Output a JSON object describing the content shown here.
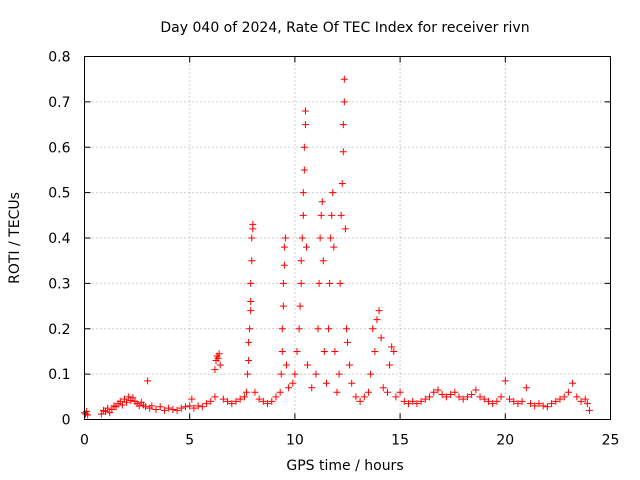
{
  "chart_data": {
    "type": "scatter",
    "title": "Day 040 of 2024, Rate Of TEC Index for receiver rivn",
    "xlabel": "GPS time / hours",
    "ylabel": "ROTI / TECUs",
    "xlim": [
      0,
      25
    ],
    "ylim": [
      0,
      0.8
    ],
    "x_ticks": [
      0,
      5,
      10,
      15,
      20,
      25
    ],
    "y_ticks": [
      0,
      0.1,
      0.2,
      0.3,
      0.4,
      0.5,
      0.6,
      0.7,
      0.8
    ],
    "x_tick_labels": [
      "0",
      "5",
      "10",
      "15",
      "20",
      "25"
    ],
    "y_tick_labels": [
      "0",
      "0.1",
      "0.2",
      "0.3",
      "0.4",
      "0.5",
      "0.6",
      "0.7",
      "0.8"
    ],
    "grid": true,
    "marker": "plus",
    "marker_color": "#ff0000",
    "points": [
      [
        0.0,
        0.015
      ],
      [
        0.05,
        0.012
      ],
      [
        0.1,
        0.018
      ],
      [
        0.15,
        0.01
      ],
      [
        0.8,
        0.012
      ],
      [
        0.9,
        0.02
      ],
      [
        1.0,
        0.018
      ],
      [
        1.1,
        0.025
      ],
      [
        1.2,
        0.015
      ],
      [
        1.3,
        0.022
      ],
      [
        1.4,
        0.03
      ],
      [
        1.5,
        0.028
      ],
      [
        1.6,
        0.035
      ],
      [
        1.7,
        0.04
      ],
      [
        1.8,
        0.032
      ],
      [
        1.9,
        0.045
      ],
      [
        2.0,
        0.038
      ],
      [
        2.1,
        0.05
      ],
      [
        2.2,
        0.042
      ],
      [
        2.3,
        0.048
      ],
      [
        2.4,
        0.04
      ],
      [
        2.5,
        0.035
      ],
      [
        2.6,
        0.03
      ],
      [
        2.7,
        0.038
      ],
      [
        2.8,
        0.032
      ],
      [
        2.9,
        0.028
      ],
      [
        3.0,
        0.085
      ],
      [
        3.1,
        0.025
      ],
      [
        3.2,
        0.03
      ],
      [
        3.4,
        0.022
      ],
      [
        3.6,
        0.028
      ],
      [
        3.8,
        0.02
      ],
      [
        4.0,
        0.025
      ],
      [
        4.2,
        0.022
      ],
      [
        4.4,
        0.02
      ],
      [
        4.6,
        0.025
      ],
      [
        4.8,
        0.028
      ],
      [
        5.0,
        0.03
      ],
      [
        5.1,
        0.045
      ],
      [
        5.2,
        0.025
      ],
      [
        5.4,
        0.03
      ],
      [
        5.6,
        0.028
      ],
      [
        5.8,
        0.035
      ],
      [
        6.0,
        0.04
      ],
      [
        6.2,
        0.05
      ],
      [
        6.2,
        0.11
      ],
      [
        6.25,
        0.13
      ],
      [
        6.3,
        0.14
      ],
      [
        6.35,
        0.135
      ],
      [
        6.4,
        0.145
      ],
      [
        6.45,
        0.12
      ],
      [
        6.6,
        0.045
      ],
      [
        6.8,
        0.04
      ],
      [
        7.0,
        0.035
      ],
      [
        7.2,
        0.04
      ],
      [
        7.4,
        0.045
      ],
      [
        7.6,
        0.05
      ],
      [
        7.7,
        0.06
      ],
      [
        7.75,
        0.1
      ],
      [
        7.8,
        0.13
      ],
      [
        7.8,
        0.17
      ],
      [
        7.85,
        0.2
      ],
      [
        7.9,
        0.24
      ],
      [
        7.9,
        0.3
      ],
      [
        7.95,
        0.35
      ],
      [
        7.95,
        0.4
      ],
      [
        8.0,
        0.42
      ],
      [
        8.0,
        0.43
      ],
      [
        7.9,
        0.26
      ],
      [
        8.1,
        0.06
      ],
      [
        8.3,
        0.045
      ],
      [
        8.5,
        0.04
      ],
      [
        8.7,
        0.035
      ],
      [
        8.9,
        0.04
      ],
      [
        9.1,
        0.05
      ],
      [
        9.3,
        0.06
      ],
      [
        9.35,
        0.1
      ],
      [
        9.4,
        0.15
      ],
      [
        9.4,
        0.2
      ],
      [
        9.45,
        0.25
      ],
      [
        9.45,
        0.3
      ],
      [
        9.5,
        0.34
      ],
      [
        9.5,
        0.38
      ],
      [
        9.55,
        0.4
      ],
      [
        9.6,
        0.12
      ],
      [
        9.7,
        0.07
      ],
      [
        9.9,
        0.08
      ],
      [
        10.0,
        0.1
      ],
      [
        10.1,
        0.15
      ],
      [
        10.2,
        0.2
      ],
      [
        10.25,
        0.25
      ],
      [
        10.3,
        0.3
      ],
      [
        10.3,
        0.35
      ],
      [
        10.35,
        0.4
      ],
      [
        10.4,
        0.45
      ],
      [
        10.4,
        0.5
      ],
      [
        10.45,
        0.55
      ],
      [
        10.45,
        0.6
      ],
      [
        10.5,
        0.65
      ],
      [
        10.5,
        0.68
      ],
      [
        10.55,
        0.38
      ],
      [
        10.6,
        0.12
      ],
      [
        10.8,
        0.07
      ],
      [
        11.0,
        0.1
      ],
      [
        11.1,
        0.2
      ],
      [
        11.15,
        0.3
      ],
      [
        11.2,
        0.4
      ],
      [
        11.25,
        0.45
      ],
      [
        11.3,
        0.48
      ],
      [
        11.35,
        0.35
      ],
      [
        11.4,
        0.15
      ],
      [
        11.5,
        0.08
      ],
      [
        11.6,
        0.2
      ],
      [
        11.65,
        0.3
      ],
      [
        11.7,
        0.4
      ],
      [
        11.75,
        0.45
      ],
      [
        11.8,
        0.5
      ],
      [
        11.85,
        0.38
      ],
      [
        11.9,
        0.15
      ],
      [
        12.0,
        0.06
      ],
      [
        12.1,
        0.1
      ],
      [
        12.15,
        0.3
      ],
      [
        12.2,
        0.45
      ],
      [
        12.25,
        0.52
      ],
      [
        12.3,
        0.59
      ],
      [
        12.3,
        0.65
      ],
      [
        12.35,
        0.7
      ],
      [
        12.35,
        0.75
      ],
      [
        12.4,
        0.42
      ],
      [
        12.45,
        0.2
      ],
      [
        12.5,
        0.17
      ],
      [
        12.6,
        0.12
      ],
      [
        12.7,
        0.08
      ],
      [
        12.9,
        0.05
      ],
      [
        13.1,
        0.04
      ],
      [
        13.3,
        0.05
      ],
      [
        13.5,
        0.06
      ],
      [
        13.6,
        0.1
      ],
      [
        13.7,
        0.2
      ],
      [
        13.8,
        0.15
      ],
      [
        13.9,
        0.22
      ],
      [
        14.0,
        0.24
      ],
      [
        14.1,
        0.18
      ],
      [
        14.2,
        0.07
      ],
      [
        14.4,
        0.06
      ],
      [
        14.5,
        0.12
      ],
      [
        14.6,
        0.16
      ],
      [
        14.7,
        0.15
      ],
      [
        14.8,
        0.05
      ],
      [
        15.0,
        0.06
      ],
      [
        15.2,
        0.04
      ],
      [
        15.4,
        0.035
      ],
      [
        15.6,
        0.04
      ],
      [
        15.8,
        0.035
      ],
      [
        16.0,
        0.04
      ],
      [
        16.2,
        0.045
      ],
      [
        16.4,
        0.05
      ],
      [
        16.6,
        0.06
      ],
      [
        16.8,
        0.065
      ],
      [
        17.0,
        0.055
      ],
      [
        17.2,
        0.05
      ],
      [
        17.4,
        0.055
      ],
      [
        17.6,
        0.06
      ],
      [
        17.8,
        0.05
      ],
      [
        18.0,
        0.045
      ],
      [
        18.2,
        0.05
      ],
      [
        18.4,
        0.055
      ],
      [
        18.6,
        0.065
      ],
      [
        18.8,
        0.05
      ],
      [
        19.0,
        0.045
      ],
      [
        19.2,
        0.04
      ],
      [
        19.4,
        0.035
      ],
      [
        19.6,
        0.04
      ],
      [
        19.8,
        0.05
      ],
      [
        20.0,
        0.085
      ],
      [
        20.2,
        0.045
      ],
      [
        20.4,
        0.04
      ],
      [
        20.6,
        0.035
      ],
      [
        20.8,
        0.04
      ],
      [
        21.0,
        0.07
      ],
      [
        21.2,
        0.035
      ],
      [
        21.4,
        0.03
      ],
      [
        21.6,
        0.035
      ],
      [
        21.8,
        0.03
      ],
      [
        22.0,
        0.028
      ],
      [
        22.2,
        0.035
      ],
      [
        22.4,
        0.04
      ],
      [
        22.6,
        0.045
      ],
      [
        22.8,
        0.05
      ],
      [
        23.0,
        0.06
      ],
      [
        23.2,
        0.08
      ],
      [
        23.4,
        0.05
      ],
      [
        23.6,
        0.04
      ],
      [
        23.8,
        0.045
      ],
      [
        23.9,
        0.035
      ],
      [
        24.0,
        0.02
      ]
    ]
  }
}
